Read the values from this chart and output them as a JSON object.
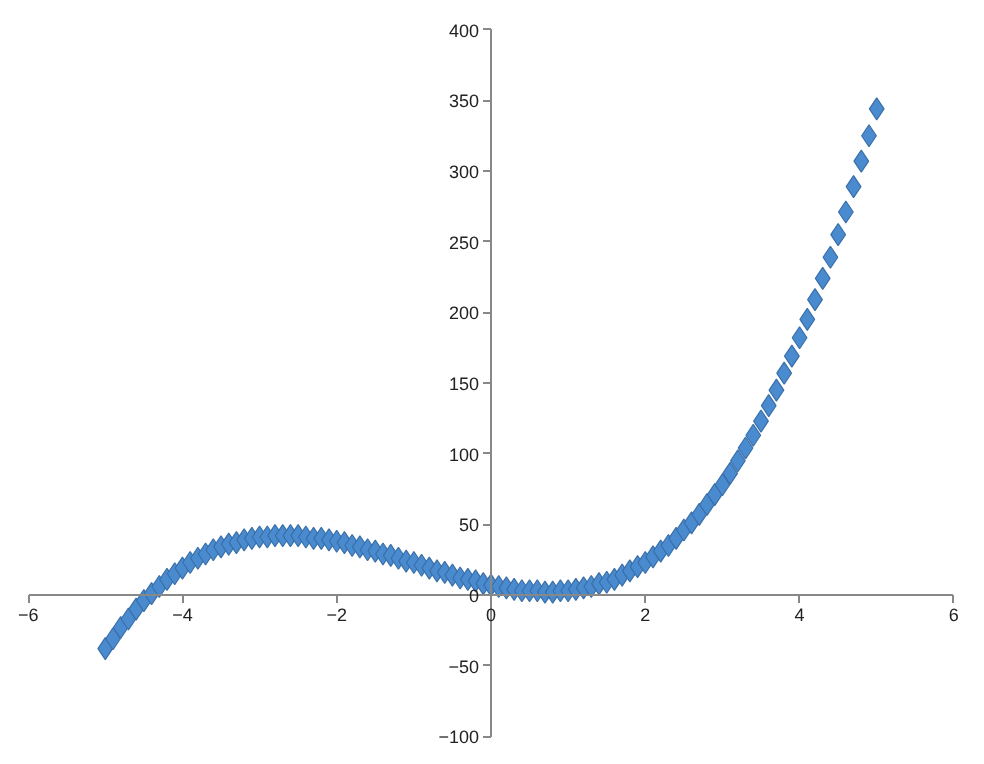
{
  "chart_data": {
    "type": "scatter",
    "marker": "diamond",
    "color": "#4a8bd0",
    "grid": false,
    "xlim": [
      -6,
      6
    ],
    "ylim": [
      -100,
      400
    ],
    "xticks": [
      -6,
      -4,
      -2,
      0,
      2,
      4,
      6
    ],
    "yticks": [
      -100,
      -50,
      0,
      50,
      100,
      150,
      200,
      250,
      300,
      350,
      400
    ],
    "x": [
      -5.0,
      -4.9,
      -4.8,
      -4.7,
      -4.6,
      -4.5,
      -4.4,
      -4.3,
      -4.2,
      -4.1,
      -4.0,
      -3.9,
      -3.8,
      -3.7,
      -3.6,
      -3.5,
      -3.4,
      -3.3,
      -3.2,
      -3.1,
      -3.0,
      -2.9,
      -2.8,
      -2.7,
      -2.6,
      -2.5,
      -2.4,
      -2.3,
      -2.2,
      -2.1,
      -2.0,
      -1.9,
      -1.8,
      -1.7,
      -1.6,
      -1.5,
      -1.4,
      -1.3,
      -1.2,
      -1.1,
      -1.0,
      -0.9,
      -0.8,
      -0.7,
      -0.6,
      -0.5,
      -0.4,
      -0.3,
      -0.2,
      -0.1,
      0.0,
      0.1,
      0.2,
      0.3,
      0.4,
      0.5,
      0.6,
      0.7,
      0.8,
      0.9,
      1.0,
      1.1,
      1.2,
      1.3,
      1.4,
      1.5,
      1.6,
      1.7,
      1.8,
      1.9,
      2.0,
      2.1,
      2.2,
      2.3,
      2.4,
      2.5,
      2.6,
      2.7,
      2.8,
      2.9,
      3.0,
      3.1,
      3.2,
      3.3,
      3.4,
      3.5,
      3.6,
      3.7,
      3.8,
      3.9,
      4.0,
      4.1,
      4.2,
      4.3,
      4.4,
      4.5,
      4.6,
      4.7,
      4.8,
      4.9,
      5.0
    ],
    "values": [
      -38,
      -31,
      -23,
      -17,
      -10,
      -4,
      1,
      6,
      11,
      15,
      19,
      23,
      26,
      29,
      32,
      34,
      36,
      37,
      39,
      40,
      41,
      41,
      42,
      42,
      42,
      42,
      41,
      40,
      40,
      39,
      38,
      37,
      35,
      34,
      32,
      31,
      29,
      28,
      26,
      24,
      23,
      21,
      19,
      17,
      16,
      14,
      12,
      11,
      10,
      8,
      7,
      6,
      5,
      4,
      3,
      3,
      3,
      2,
      2,
      3,
      3,
      4,
      5,
      6,
      8,
      9,
      11,
      14,
      17,
      20,
      23,
      27,
      31,
      35,
      40,
      46,
      51,
      57,
      64,
      71,
      78,
      86,
      95,
      104,
      113,
      123,
      134,
      145,
      157,
      169,
      182,
      195,
      209,
      224,
      239,
      255,
      271,
      289,
      307,
      325,
      344
    ]
  }
}
